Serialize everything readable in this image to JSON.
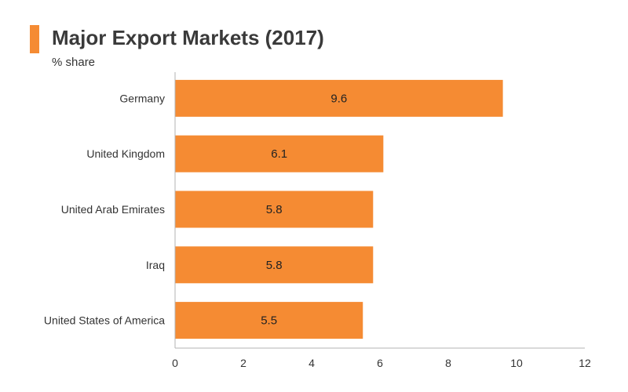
{
  "header": {
    "title": "Major Export Markets (2017)",
    "subtitle": "% share"
  },
  "colors": {
    "accent": "#f58b33",
    "bar": "#f58b33",
    "axis": "#b3b3b3"
  },
  "chart_data": {
    "type": "bar",
    "orientation": "horizontal",
    "title": "Major Export Markets (2017)",
    "subtitle": "% share",
    "xlabel": "",
    "ylabel": "",
    "categories": [
      "Germany",
      "United Kingdom",
      "United Arab Emirates",
      "Iraq",
      "United States of America"
    ],
    "values": [
      9.6,
      6.1,
      5.8,
      5.8,
      5.5
    ],
    "data_labels": [
      "9.6",
      "6.1",
      "5.8",
      "5.8",
      "5.5"
    ],
    "xlim": [
      0,
      12
    ],
    "xticks": [
      0,
      2,
      4,
      6,
      8,
      10,
      12
    ],
    "grid": false,
    "legend": "none"
  }
}
